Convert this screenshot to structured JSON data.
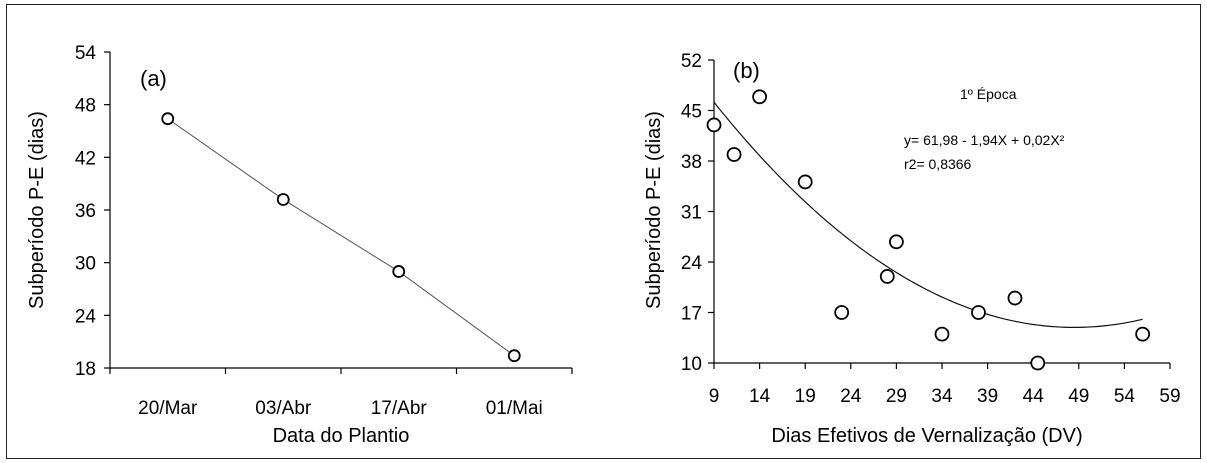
{
  "chart_data": [
    {
      "type": "line",
      "panel_label": "(a)",
      "xlabel": "Data do Plantio",
      "ylabel": "Subperíodo P-E (dias)",
      "categories": [
        "20/Mar",
        "03/Abr",
        "17/Abr",
        "01/Mai"
      ],
      "values": [
        46.4,
        37.2,
        29.0,
        19.4
      ],
      "ylim": [
        18,
        54
      ],
      "yticks": [
        "54",
        "48",
        "42",
        "36",
        "30",
        "24",
        "18"
      ],
      "grid": false,
      "marker": "open-circle"
    },
    {
      "type": "scatter",
      "panel_label": "(b)",
      "xlabel": "Dias Efetivos de Vernalização  (DV)",
      "ylabel": "Subperíodo P-E (dias)",
      "xlim": [
        9,
        59
      ],
      "ylim": [
        10,
        52
      ],
      "xticks": [
        "9",
        "14",
        "19",
        "24",
        "29",
        "34",
        "39",
        "44",
        "49",
        "54",
        "59"
      ],
      "yticks": [
        "52",
        "45",
        "38",
        "31",
        "24",
        "17",
        "10"
      ],
      "points": [
        {
          "x": 9,
          "y": 43
        },
        {
          "x": 11.2,
          "y": 38.9
        },
        {
          "x": 14,
          "y": 46.9
        },
        {
          "x": 19,
          "y": 35.1
        },
        {
          "x": 23,
          "y": 17
        },
        {
          "x": 28,
          "y": 22
        },
        {
          "x": 29,
          "y": 26.8
        },
        {
          "x": 34,
          "y": 14
        },
        {
          "x": 38,
          "y": 17
        },
        {
          "x": 42,
          "y": 19
        },
        {
          "x": 44.5,
          "y": 10
        },
        {
          "x": 56,
          "y": 14
        }
      ],
      "fit": {
        "type": "quadratic",
        "a": 61.98,
        "b": -1.94,
        "c": 0.02,
        "x_range": [
          9,
          56
        ]
      },
      "annotations": {
        "season": "1º Época",
        "equation": "y= 61,98 - 1,94X + 0,02X²",
        "r2": "r2= 0,8366"
      },
      "grid": false,
      "marker": "open-circle"
    }
  ]
}
